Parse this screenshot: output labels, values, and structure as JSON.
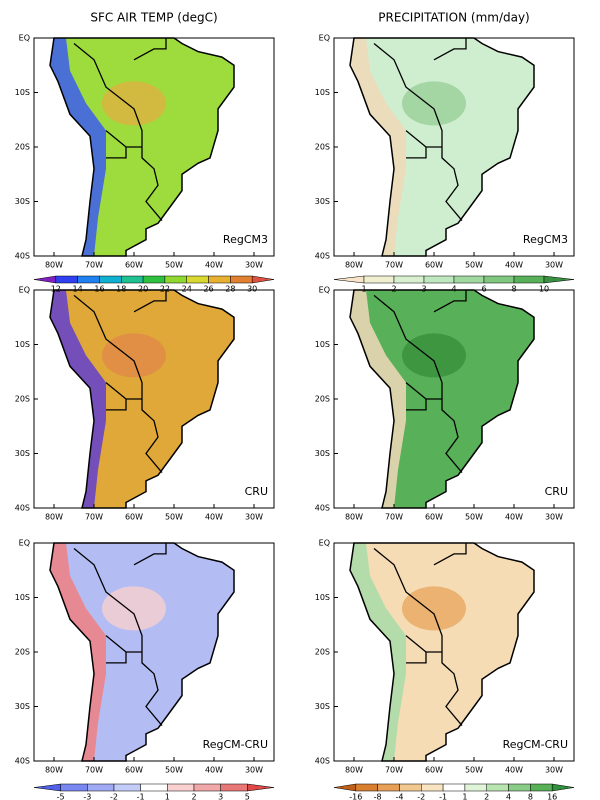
{
  "titles": [
    "SFC AIR TEMP (degC)",
    "PRECIPITATION (mm/day)"
  ],
  "lat_labels": [
    "EQ",
    "10S",
    "20S",
    "30S",
    "40S"
  ],
  "lon_labels": [
    "80W",
    "70W",
    "60W",
    "50W",
    "40W",
    "30W"
  ],
  "rows": [
    {
      "left_label": "RegCM3",
      "right_label": "RegCM3"
    },
    {
      "left_label": "CRU",
      "right_label": "CRU"
    },
    {
      "left_label": "RegCM-CRU",
      "right_label": "RegCM-CRU"
    }
  ],
  "colorbars": {
    "temp": [
      12,
      14,
      16,
      18,
      20,
      22,
      24,
      26,
      28,
      30
    ],
    "precip": [
      1,
      2,
      3,
      4,
      6,
      8,
      10
    ],
    "temp_diff": [
      -5,
      -3,
      -2,
      -1,
      1,
      2,
      3,
      5
    ],
    "precip_diff": [
      -16,
      -8,
      -4,
      -2,
      -1,
      1,
      2,
      4,
      8,
      16
    ]
  }
}
